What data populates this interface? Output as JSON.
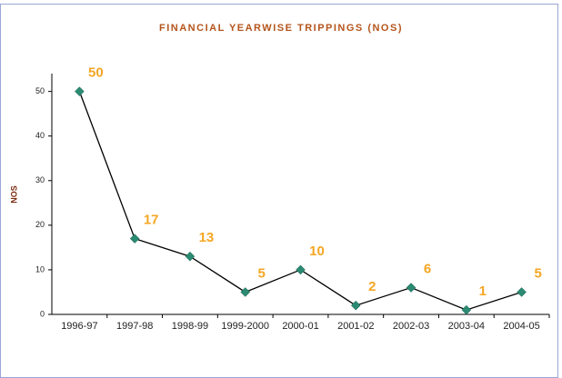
{
  "chart_data": {
    "type": "line",
    "title": "FINANCIAL YEARWISE TRIPPINGS (NOS)",
    "y_label": "NOS",
    "categories": [
      "1996-97",
      "1997-98",
      "1998-99",
      "1999-2000",
      "2000-01",
      "2001-02",
      "2002-03",
      "2003-04",
      "2004-05"
    ],
    "values": [
      50,
      17,
      13,
      5,
      10,
      2,
      6,
      1,
      5
    ],
    "color": "#000000",
    "marker_color": "#2a8a72",
    "label_color": "#f5a623",
    "ylim": [
      0,
      54
    ],
    "yticks": [
      0,
      10,
      20,
      30,
      40,
      50
    ],
    "grid": false
  }
}
